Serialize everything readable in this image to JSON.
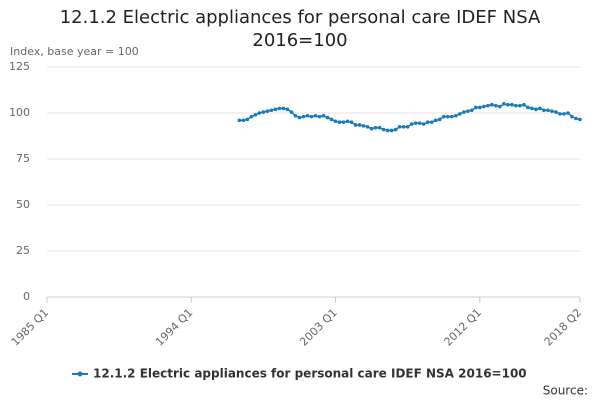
{
  "chart_data": {
    "type": "line",
    "title": "12.1.2 Electric appliances for personal care IDEF NSA 2016=100",
    "y_label": "Index, base year = 100",
    "source": "Source:",
    "categories": [
      "1985 Q1",
      null,
      null,
      null,
      null,
      null,
      null,
      null,
      null,
      null,
      null,
      null,
      null,
      null,
      null,
      null,
      null,
      null,
      null,
      null,
      null,
      null,
      null,
      null,
      null,
      null,
      null,
      null,
      null,
      null,
      null,
      null,
      null,
      null,
      null,
      null,
      "1994 Q1",
      null,
      null,
      null,
      null,
      null,
      null,
      null,
      null,
      null,
      null,
      null,
      null,
      null,
      null,
      null,
      null,
      null,
      null,
      null,
      null,
      null,
      null,
      null,
      null,
      null,
      null,
      null,
      null,
      null,
      null,
      null,
      null,
      null,
      null,
      null,
      "2003 Q1",
      null,
      null,
      null,
      null,
      null,
      null,
      null,
      null,
      null,
      null,
      null,
      null,
      null,
      null,
      null,
      null,
      null,
      null,
      null,
      null,
      null,
      null,
      null,
      null,
      null,
      null,
      null,
      null,
      null,
      null,
      null,
      null,
      null,
      null,
      null,
      "2012 Q1",
      null,
      null,
      null,
      null,
      null,
      null,
      null,
      null,
      null,
      null,
      null,
      null,
      null,
      null,
      null,
      null,
      null,
      null,
      null,
      null,
      null,
      null,
      null,
      null,
      "2018 Q2"
    ],
    "series": [
      {
        "name": "12.1.2 Electric appliances for personal care IDEF NSA 2016=100",
        "color": "#1a7ab8",
        "values": [
          null,
          null,
          null,
          null,
          null,
          null,
          null,
          null,
          null,
          null,
          null,
          null,
          null,
          null,
          null,
          null,
          null,
          null,
          null,
          null,
          null,
          null,
          null,
          null,
          null,
          null,
          null,
          null,
          null,
          null,
          null,
          null,
          null,
          null,
          null,
          null,
          null,
          null,
          null,
          null,
          null,
          null,
          null,
          null,
          null,
          null,
          null,
          null,
          96,
          96,
          96.5,
          98,
          99,
          100,
          100.5,
          101,
          101.5,
          102,
          102.5,
          102.5,
          102,
          100.5,
          98.5,
          97.5,
          98,
          98.5,
          98,
          98.5,
          98,
          98.5,
          97.5,
          96.5,
          95.5,
          95,
          95,
          95.5,
          95,
          93.5,
          93.5,
          93,
          92.5,
          91.5,
          92,
          92,
          91,
          90.5,
          90.5,
          91,
          92.5,
          92.5,
          92.5,
          94,
          94.5,
          94.5,
          94,
          95,
          95,
          96,
          96.5,
          98,
          98,
          98,
          98.5,
          99.5,
          100.5,
          101,
          101.5,
          103,
          103,
          103.5,
          104,
          104.5,
          104,
          103.5,
          105,
          104.5,
          104.5,
          104,
          104,
          104.5,
          103,
          102.5,
          102,
          102.5,
          101.5,
          101.5,
          101,
          100.5,
          99.5,
          99.5,
          100,
          98,
          97,
          96.5
        ]
      }
    ],
    "ylim": [
      0,
      125
    ],
    "yticks": [
      0,
      25,
      50,
      75,
      100,
      125
    ],
    "grid": true
  }
}
